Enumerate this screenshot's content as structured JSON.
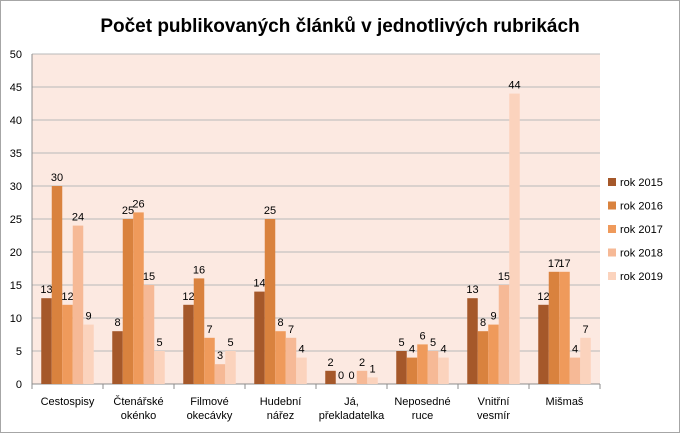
{
  "chart_data": {
    "type": "bar",
    "title": "Počet publikovaných článků v jednotlivých rubrikách",
    "xlabel": "",
    "ylabel": "",
    "ylim": [
      0,
      50
    ],
    "yticks": [
      0,
      5,
      10,
      15,
      20,
      25,
      30,
      35,
      40,
      45,
      50
    ],
    "grid": true,
    "legend_position": "right",
    "plot_background": "#fce9e1",
    "categories": [
      [
        "Cestospisy"
      ],
      [
        "Čtenářské",
        "okénko"
      ],
      [
        "Filmové",
        "okecávky"
      ],
      [
        "Hudební",
        "nářez"
      ],
      [
        "Já,",
        "překladatelka"
      ],
      [
        "Neposedné",
        "ruce"
      ],
      [
        "Vnitřní",
        "vesmír"
      ],
      [
        "Mišmaš"
      ]
    ],
    "series": [
      {
        "name": "rok 2015",
        "color": "#a5582a",
        "values": [
          13,
          8,
          12,
          14,
          2,
          5,
          13,
          12
        ]
      },
      {
        "name": "rok 2016",
        "color": "#d9823e",
        "values": [
          30,
          25,
          16,
          25,
          0,
          4,
          8,
          17
        ]
      },
      {
        "name": "rok 2017",
        "color": "#ef9a5b",
        "values": [
          12,
          26,
          7,
          8,
          0,
          6,
          9,
          17
        ]
      },
      {
        "name": "rok 2018",
        "color": "#f6b996",
        "values": [
          24,
          15,
          3,
          7,
          2,
          5,
          15,
          4
        ]
      },
      {
        "name": "rok 2019",
        "color": "#fbd3bd",
        "values": [
          9,
          5,
          5,
          4,
          1,
          4,
          44,
          7
        ]
      }
    ]
  }
}
